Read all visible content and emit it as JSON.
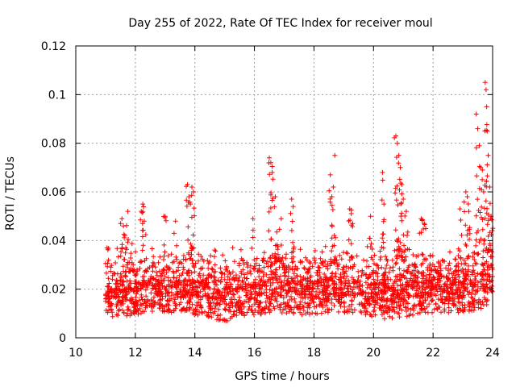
{
  "chart_data": {
    "type": "scatter",
    "title": "Day 255 of 2022, Rate Of TEC Index for receiver moul",
    "xlabel": "GPS time / hours",
    "ylabel": "ROTI / TECUs",
    "xlim": [
      10,
      24
    ],
    "ylim": [
      0,
      0.12
    ],
    "x_ticks": [
      10,
      12,
      14,
      16,
      18,
      20,
      22,
      24
    ],
    "y_ticks": [
      0,
      0.02,
      0.04,
      0.06,
      0.08,
      0.1,
      0.12
    ],
    "x_tick_labels": [
      "10",
      "12",
      "14",
      "16",
      "18",
      "20",
      "22",
      "24"
    ],
    "y_tick_labels": [
      "0",
      "0.02",
      "0.04",
      "0.06",
      "0.08",
      "0.1",
      "0.12"
    ],
    "grid": true,
    "marker": "+",
    "color": "#ff0000",
    "series": [
      {
        "name": "ROTI",
        "x_range": [
          11.0,
          24.0
        ],
        "baseline_envelope": {
          "x": [
            11.0,
            11.5,
            12.0,
            12.5,
            13.0,
            13.5,
            14.0,
            14.5,
            15.0,
            15.5,
            16.0,
            16.5,
            17.0,
            17.5,
            18.0,
            18.5,
            19.0,
            19.5,
            20.0,
            20.5,
            21.0,
            21.5,
            22.0,
            22.5,
            23.0,
            23.5,
            24.0
          ],
          "low": [
            0.008,
            0.006,
            0.008,
            0.009,
            0.009,
            0.009,
            0.008,
            0.007,
            0.005,
            0.007,
            0.008,
            0.008,
            0.008,
            0.008,
            0.008,
            0.009,
            0.009,
            0.009,
            0.007,
            0.006,
            0.007,
            0.008,
            0.009,
            0.009,
            0.009,
            0.01,
            0.01
          ],
          "high": [
            0.03,
            0.036,
            0.036,
            0.038,
            0.036,
            0.036,
            0.037,
            0.035,
            0.035,
            0.036,
            0.036,
            0.038,
            0.038,
            0.036,
            0.035,
            0.038,
            0.037,
            0.035,
            0.036,
            0.038,
            0.04,
            0.038,
            0.036,
            0.035,
            0.036,
            0.04,
            0.045
          ]
        },
        "peaks": [
          {
            "x": 11.05,
            "y": 0.037
          },
          {
            "x": 11.55,
            "y": 0.049
          },
          {
            "x": 11.6,
            "y": 0.046
          },
          {
            "x": 11.75,
            "y": 0.052
          },
          {
            "x": 11.65,
            "y": 0.042
          },
          {
            "x": 12.25,
            "y": 0.055
          },
          {
            "x": 12.2,
            "y": 0.052
          },
          {
            "x": 12.3,
            "y": 0.048
          },
          {
            "x": 13.0,
            "y": 0.05
          },
          {
            "x": 13.35,
            "y": 0.048
          },
          {
            "x": 13.75,
            "y": 0.063
          },
          {
            "x": 13.8,
            "y": 0.058
          },
          {
            "x": 13.9,
            "y": 0.062
          },
          {
            "x": 13.95,
            "y": 0.06
          },
          {
            "x": 13.85,
            "y": 0.055
          },
          {
            "x": 15.95,
            "y": 0.049
          },
          {
            "x": 16.5,
            "y": 0.074
          },
          {
            "x": 16.55,
            "y": 0.072
          },
          {
            "x": 16.6,
            "y": 0.068
          },
          {
            "x": 16.7,
            "y": 0.058
          },
          {
            "x": 16.9,
            "y": 0.049
          },
          {
            "x": 17.25,
            "y": 0.057
          },
          {
            "x": 17.3,
            "y": 0.054
          },
          {
            "x": 18.55,
            "y": 0.067
          },
          {
            "x": 18.65,
            "y": 0.062
          },
          {
            "x": 18.7,
            "y": 0.075
          },
          {
            "x": 18.6,
            "y": 0.058
          },
          {
            "x": 19.2,
            "y": 0.053
          },
          {
            "x": 19.3,
            "y": 0.047
          },
          {
            "x": 19.9,
            "y": 0.05
          },
          {
            "x": 20.3,
            "y": 0.068
          },
          {
            "x": 20.35,
            "y": 0.055
          },
          {
            "x": 20.75,
            "y": 0.083
          },
          {
            "x": 20.8,
            "y": 0.08
          },
          {
            "x": 20.85,
            "y": 0.075
          },
          {
            "x": 20.9,
            "y": 0.07
          },
          {
            "x": 20.95,
            "y": 0.063
          },
          {
            "x": 21.0,
            "y": 0.057
          },
          {
            "x": 21.1,
            "y": 0.052
          },
          {
            "x": 21.6,
            "y": 0.049
          },
          {
            "x": 21.7,
            "y": 0.047
          },
          {
            "x": 22.9,
            "y": 0.053
          },
          {
            "x": 23.1,
            "y": 0.06
          },
          {
            "x": 23.15,
            "y": 0.058
          },
          {
            "x": 23.2,
            "y": 0.052
          },
          {
            "x": 23.45,
            "y": 0.092
          },
          {
            "x": 23.5,
            "y": 0.086
          },
          {
            "x": 23.55,
            "y": 0.079
          },
          {
            "x": 23.6,
            "y": 0.07
          },
          {
            "x": 23.65,
            "y": 0.065
          },
          {
            "x": 23.7,
            "y": 0.06
          },
          {
            "x": 23.75,
            "y": 0.105
          },
          {
            "x": 23.78,
            "y": 0.102
          },
          {
            "x": 23.8,
            "y": 0.095
          },
          {
            "x": 23.82,
            "y": 0.085
          },
          {
            "x": 23.85,
            "y": 0.075
          },
          {
            "x": 23.9,
            "y": 0.062
          },
          {
            "x": 23.95,
            "y": 0.05
          }
        ]
      }
    ]
  }
}
